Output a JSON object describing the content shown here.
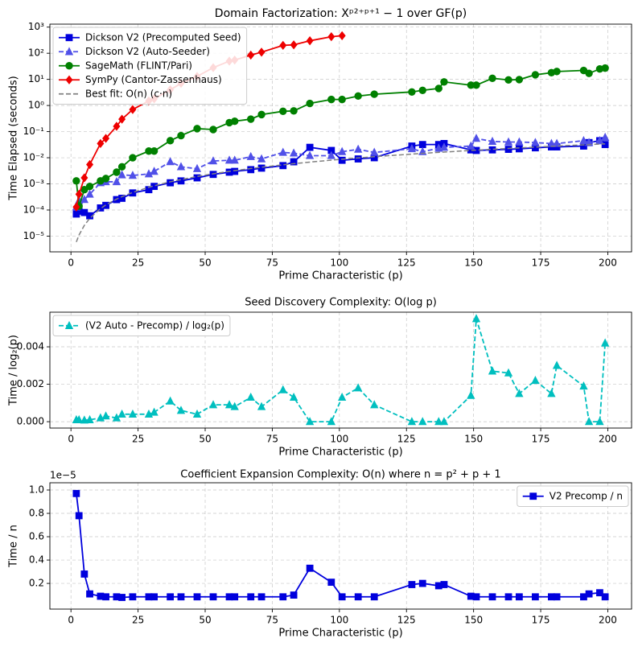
{
  "chart_data": [
    {
      "type": "line",
      "title": "Domain Factorization: Xᵖ²⁺ᵖ⁺¹ − 1 over GF(p)",
      "xlabel": "Prime Characteristic (p)",
      "ylabel": "Time Elapsed (seconds)",
      "x": [
        2,
        3,
        5,
        7,
        11,
        13,
        17,
        19,
        23,
        29,
        31,
        37,
        41,
        47,
        53,
        59,
        61,
        67,
        71,
        79,
        83,
        89,
        97,
        101,
        107,
        113,
        127,
        131,
        137,
        139,
        149,
        151,
        157,
        163,
        167,
        173,
        179,
        181,
        191,
        193,
        197,
        199
      ],
      "xlim": [
        -7.85,
        208.85
      ],
      "xticks": [
        0,
        25,
        50,
        75,
        100,
        125,
        150,
        175,
        200
      ],
      "ylim": [
        2.5e-06,
        1300
      ],
      "ylog": true,
      "yticks": [
        {
          "value": 1e-05,
          "label": "10⁻⁵"
        },
        {
          "value": 0.0001,
          "label": "10⁻⁴"
        },
        {
          "value": 0.001,
          "label": "10⁻³"
        },
        {
          "value": 0.01,
          "label": "10⁻²"
        },
        {
          "value": 0.1,
          "label": "10⁻¹"
        },
        {
          "value": 1,
          "label": "10⁰"
        },
        {
          "value": 10,
          "label": "10¹"
        },
        {
          "value": 100,
          "label": "10²"
        },
        {
          "value": 1000,
          "label": "10³"
        }
      ],
      "grid": true,
      "legend": "upper left",
      "series": [
        {
          "name": "Dickson V2 (Precomputed Seed)",
          "color": "#0000dd",
          "marker": "square",
          "linestyle": "solid",
          "values": [
            7e-05,
            9e-05,
            8e-05,
            6e-05,
            0.00012,
            0.00015,
            0.00025,
            0.00028,
            0.00045,
            0.0006,
            0.0008,
            0.0011,
            0.0013,
            0.0017,
            0.0023,
            0.0028,
            0.003,
            0.0035,
            0.004,
            0.005,
            0.007,
            0.025,
            0.019,
            0.008,
            0.009,
            0.01,
            0.028,
            0.032,
            0.032,
            0.035,
            0.02,
            0.019,
            0.02,
            0.021,
            0.022,
            0.024,
            0.026,
            0.026,
            0.028,
            0.038,
            0.045,
            0.032
          ]
        },
        {
          "name": "Dickson V2 (Auto-Seeder)",
          "color": "#5050e8",
          "marker": "triangle",
          "linestyle": "dashed",
          "values": [
            0.00013,
            0.00023,
            0.00025,
            0.0004,
            0.0011,
            0.0012,
            0.0012,
            0.0022,
            0.0021,
            0.0024,
            0.003,
            0.007,
            0.0045,
            0.0038,
            0.0075,
            0.008,
            0.008,
            0.011,
            0.009,
            0.016,
            0.015,
            0.012,
            0.012,
            0.017,
            0.021,
            0.016,
            0.022,
            0.017,
            0.023,
            0.025,
            0.028,
            0.055,
            0.042,
            0.04,
            0.04,
            0.038,
            0.035,
            0.035,
            0.045,
            0.038,
            0.045,
            0.06
          ]
        },
        {
          "name": "SageMath (FLINT/Pari)",
          "color": "#008000",
          "marker": "circle",
          "linestyle": "solid",
          "values": [
            0.0013,
            0.00014,
            0.0006,
            0.0008,
            0.0013,
            0.0016,
            0.0028,
            0.0045,
            0.01,
            0.018,
            0.018,
            0.045,
            0.07,
            0.13,
            0.12,
            0.22,
            0.25,
            0.3,
            0.45,
            0.6,
            0.62,
            1.2,
            1.7,
            1.7,
            2.3,
            2.7,
            3.3,
            3.8,
            4.5,
            8,
            6,
            6,
            11,
            9.5,
            9.8,
            15,
            18,
            20,
            22,
            17,
            25,
            27
          ]
        },
        {
          "name": "SymPy (Cantor-Zassenhaus)",
          "color": "#ee0000",
          "marker": "diamond",
          "linestyle": "solid",
          "values": [
            0.00013,
            0.0004,
            0.0017,
            0.0055,
            0.035,
            0.055,
            0.16,
            0.3,
            0.7,
            1.5,
            1.8,
            4,
            7,
            13,
            28,
            50,
            55,
            85,
            110,
            200,
            210,
            300,
            430,
            470,
            null,
            null,
            null,
            null,
            null,
            null,
            null,
            null,
            null,
            null,
            null,
            null,
            null,
            null,
            null,
            null,
            null,
            null
          ]
        },
        {
          "name": "Best fit: O(n) (c·n)",
          "color": "#808080",
          "marker": "none",
          "linestyle": "dashed",
          "values": [
            5.95e-06,
            1.1e-05,
            2.6e-05,
            4.8e-05,
            0.000113,
            0.000156,
            0.000261,
            0.000324,
            0.00047,
            0.00074,
            0.000844,
            0.0012,
            0.00146,
            0.00192,
            0.00243,
            0.00301,
            0.00322,
            0.00387,
            0.00435,
            0.00537,
            0.00593,
            0.00681,
            0.00808,
            0.00876,
            0.00982,
            0.011,
            0.0138,
            0.0147,
            0.0161,
            0.0165,
            0.019,
            0.0195,
            0.0211,
            0.0227,
            0.0238,
            0.0256,
            0.0274,
            0.028,
            0.0312,
            0.0318,
            0.0332,
            0.0338
          ]
        }
      ]
    },
    {
      "type": "line",
      "title": "Seed Discovery Complexity: O(log p)",
      "xlabel": "Prime Characteristic (p)",
      "ylabel": "Time / log₂(p)",
      "x": [
        2,
        3,
        5,
        7,
        11,
        13,
        17,
        19,
        23,
        29,
        31,
        37,
        41,
        47,
        53,
        59,
        61,
        67,
        71,
        79,
        83,
        89,
        97,
        101,
        107,
        113,
        127,
        131,
        137,
        139,
        149,
        151,
        157,
        163,
        167,
        173,
        179,
        181,
        191,
        193,
        197,
        199
      ],
      "xlim": [
        -7.85,
        208.85
      ],
      "xticks": [
        0,
        25,
        50,
        75,
        100,
        125,
        150,
        175,
        200
      ],
      "ylim": [
        -0.00034,
        0.00585
      ],
      "yticks": [
        {
          "value": 0,
          "label": "0.000"
        },
        {
          "value": 0.002,
          "label": "0.002"
        },
        {
          "value": 0.004,
          "label": "0.004"
        }
      ],
      "grid": true,
      "legend": "upper left",
      "series": [
        {
          "name": "(V2 Auto - Precomp) / log₂(p)",
          "color": "#00bfbf",
          "marker": "triangle",
          "linestyle": "dashed",
          "values": [
            0.0001,
            0.0001,
            8e-05,
            0.0001,
            0.0002,
            0.0003,
            0.0002,
            0.0004,
            0.0004,
            0.0004,
            0.0005,
            0.0011,
            0.0006,
            0.0004,
            0.0009,
            0.0009,
            0.0008,
            0.0013,
            0.0008,
            0.0017,
            0.0013,
            0,
            0,
            0.0013,
            0.0018,
            0.0009,
            0,
            0,
            0,
            0,
            0.0014,
            0.0055,
            0.0027,
            0.0026,
            0.0015,
            0.0022,
            0.0015,
            0.003,
            0.0019,
            0,
            0,
            0.0042
          ]
        }
      ]
    },
    {
      "type": "line",
      "title": "Coefficient Expansion Complexity: O(n) where n = p² + p + 1",
      "xlabel": "Prime Characteristic (p)",
      "ylabel": "Time / n",
      "offset_text": "1e−5",
      "x": [
        2,
        3,
        5,
        7,
        11,
        13,
        17,
        19,
        23,
        29,
        31,
        37,
        41,
        47,
        53,
        59,
        61,
        67,
        71,
        79,
        83,
        89,
        97,
        101,
        107,
        113,
        127,
        131,
        137,
        139,
        149,
        151,
        157,
        163,
        167,
        173,
        179,
        181,
        191,
        193,
        197,
        199
      ],
      "xlim": [
        -7.85,
        208.85
      ],
      "xticks": [
        0,
        25,
        50,
        75,
        100,
        125,
        150,
        175,
        200
      ],
      "ylim": [
        -0.02,
        1.062
      ],
      "yticks": [
        0.2,
        0.4,
        0.6,
        0.8,
        {
          "value": 1,
          "label": "1.0"
        }
      ],
      "grid": true,
      "legend": "upper right",
      "series": [
        {
          "name": "V2 Precomp / n",
          "color": "#0000dd",
          "marker": "square",
          "linestyle": "solid",
          "values": [
            0.97,
            0.78,
            0.28,
            0.11,
            0.09,
            0.085,
            0.085,
            0.08,
            0.085,
            0.085,
            0.085,
            0.085,
            0.085,
            0.085,
            0.085,
            0.085,
            0.085,
            0.085,
            0.085,
            0.085,
            0.1,
            0.33,
            0.21,
            0.085,
            0.085,
            0.085,
            0.19,
            0.2,
            0.18,
            0.19,
            0.09,
            0.085,
            0.085,
            0.085,
            0.085,
            0.085,
            0.085,
            0.085,
            0.085,
            0.11,
            0.12,
            0.085
          ]
        }
      ]
    }
  ]
}
